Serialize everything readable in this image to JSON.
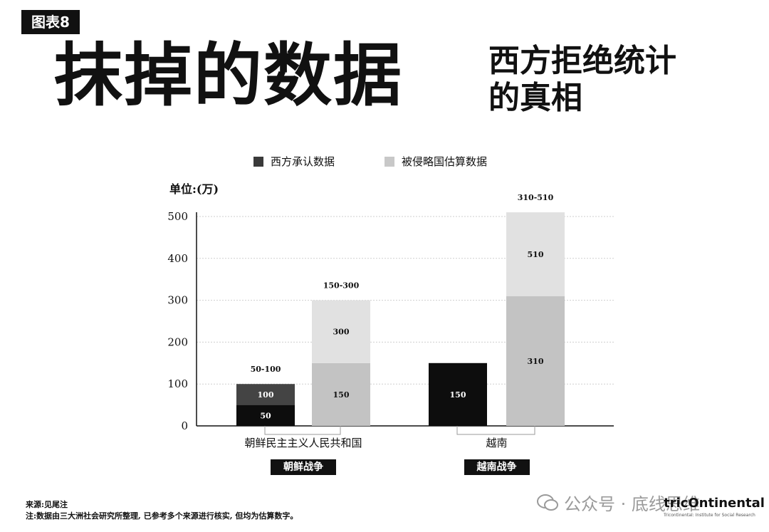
{
  "header": {
    "tag": "图表8",
    "title": "抹掉的数据",
    "subtitle_line1": "西方拒绝统计",
    "subtitle_line2": "的真相"
  },
  "chart_data": {
    "type": "bar",
    "unit_label": "单位:(万)",
    "yticks": [
      "0",
      "100",
      "200",
      "300",
      "400",
      "500"
    ],
    "ylim": [
      0,
      500
    ],
    "grid": true,
    "legend": [
      {
        "name": "西方承认数据",
        "color": "#3a3a3a"
      },
      {
        "name": "被侵略国估算数据",
        "color": "#c8c8c8"
      }
    ],
    "groups": [
      {
        "category": "朝鲜民主主义人民共和国",
        "war": "朝鲜战争",
        "bars": [
          {
            "series": "西方承认数据",
            "range_label": "50-100",
            "segments": [
              {
                "value": 50,
                "label": "50",
                "color": "#0d0d0d",
                "text_color": "#ffffff"
              },
              {
                "value": 100,
                "label": "100",
                "color": "#444444",
                "text_color": "#ffffff"
              }
            ]
          },
          {
            "series": "被侵略国估算数据",
            "range_label": "150-300",
            "segments": [
              {
                "value": 150,
                "label": "150",
                "color": "#c3c3c3",
                "text_color": "#111111"
              },
              {
                "value": 300,
                "label": "300",
                "color": "#e1e1e1",
                "text_color": "#111111"
              }
            ]
          }
        ]
      },
      {
        "category": "越南",
        "war": "越南战争",
        "bars": [
          {
            "series": "西方承认数据",
            "range_label": "",
            "segments": [
              {
                "value": 150,
                "label": "150",
                "color": "#0d0d0d",
                "text_color": "#ffffff"
              }
            ]
          },
          {
            "series": "被侵略国估算数据",
            "range_label": "310-510",
            "segments": [
              {
                "value": 310,
                "label": "310",
                "color": "#c3c3c3",
                "text_color": "#111111"
              },
              {
                "value": 510,
                "label": "510",
                "color": "#e1e1e1",
                "text_color": "#111111"
              }
            ]
          }
        ]
      }
    ]
  },
  "footer": {
    "source": "来源:见尾注",
    "note": "注:数据由三大洲社会研究所整理, 已参考多个来源进行核实, 但均为估算数字。"
  },
  "watermark": {
    "text": "公众号 · 底线思维",
    "icon": "wechat-icon"
  },
  "logo": {
    "text": "tricOntinental",
    "tagline": "Tricontinental: Institute for Social Research"
  }
}
